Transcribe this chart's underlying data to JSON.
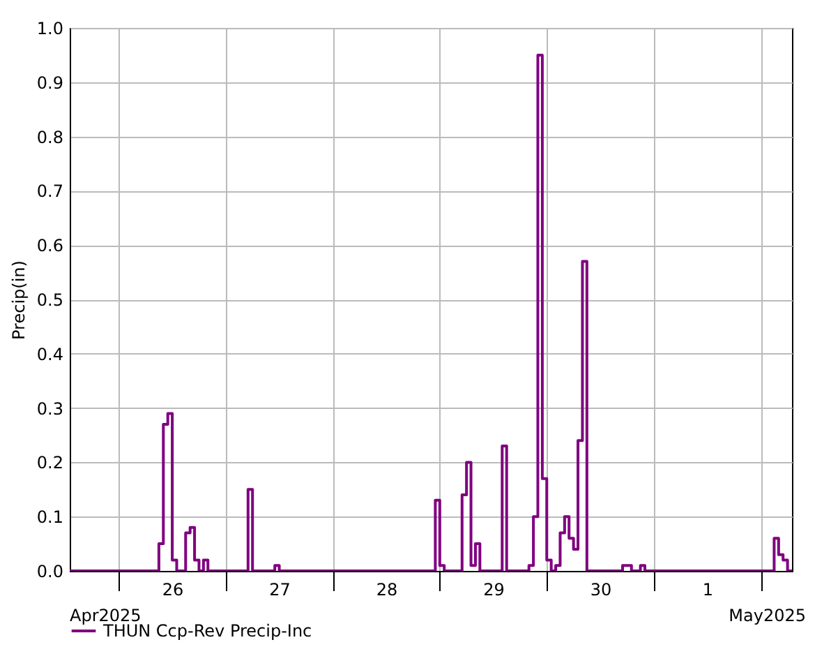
{
  "chart_data": {
    "type": "step",
    "ylabel": "Precip(in)",
    "xlim": [
      "2025-04-25T13:00",
      "2025-05-02T07:00"
    ],
    "ylim": [
      0,
      1
    ],
    "yticks": [
      {
        "value": 0,
        "label": "0.0"
      },
      {
        "value": 0.1,
        "label": "0.1"
      },
      {
        "value": 0.2,
        "label": "0.2"
      },
      {
        "value": 0.3,
        "label": "0.3"
      },
      {
        "value": 0.4,
        "label": "0.4"
      },
      {
        "value": 0.5,
        "label": "0.5"
      },
      {
        "value": 0.6,
        "label": "0.6"
      },
      {
        "value": 0.7,
        "label": "0.7"
      },
      {
        "value": 0.8,
        "label": "0.8"
      },
      {
        "value": 0.9,
        "label": "0.9"
      },
      {
        "value": 1,
        "label": "1.0"
      }
    ],
    "xticks": [
      {
        "value": "2025-04-26T00:00",
        "label": null
      },
      {
        "value": "2025-04-26T12:00",
        "label": "26"
      },
      {
        "value": "2025-04-27T00:00",
        "label": null
      },
      {
        "value": "2025-04-27T12:00",
        "label": "27"
      },
      {
        "value": "2025-04-28T00:00",
        "label": null
      },
      {
        "value": "2025-04-28T12:00",
        "label": "28"
      },
      {
        "value": "2025-04-29T00:00",
        "label": null
      },
      {
        "value": "2025-04-29T12:00",
        "label": "29"
      },
      {
        "value": "2025-04-30T00:00",
        "label": null
      },
      {
        "value": "2025-04-30T12:00",
        "label": "30"
      },
      {
        "value": "2025-05-01T00:00",
        "label": null
      },
      {
        "value": "2025-05-01T12:00",
        "label": "1"
      },
      {
        "value": "2025-05-02T00:00",
        "label": null
      }
    ],
    "grid": true,
    "legend": "bottom",
    "marker": "none",
    "line_style": "solid",
    "annotations": [
      "Apr2025",
      "May2025"
    ],
    "series": [
      {
        "name": "THUN Ccp-Rev Precip-Inc",
        "color": "#800080",
        "x": [
          "2025-04-25T13:00",
          "2025-04-26T09:00",
          "2025-04-26T10:00",
          "2025-04-26T11:00",
          "2025-04-26T12:00",
          "2025-04-26T13:00",
          "2025-04-26T15:00",
          "2025-04-26T16:00",
          "2025-04-26T17:00",
          "2025-04-26T18:00",
          "2025-04-26T19:00",
          "2025-04-26T20:00",
          "2025-04-27T05:00",
          "2025-04-27T06:00",
          "2025-04-27T11:00",
          "2025-04-27T12:00",
          "2025-04-28T23:00",
          "2025-04-29T00:00",
          "2025-04-29T01:00",
          "2025-04-29T05:00",
          "2025-04-29T06:00",
          "2025-04-29T07:00",
          "2025-04-29T08:00",
          "2025-04-29T09:00",
          "2025-04-29T14:00",
          "2025-04-29T15:00",
          "2025-04-29T20:00",
          "2025-04-29T21:00",
          "2025-04-29T22:00",
          "2025-04-29T23:00",
          "2025-04-30T00:00",
          "2025-04-30T01:00",
          "2025-04-30T02:00",
          "2025-04-30T03:00",
          "2025-04-30T04:00",
          "2025-04-30T05:00",
          "2025-04-30T06:00",
          "2025-04-30T07:00",
          "2025-04-30T08:00",
          "2025-04-30T09:00",
          "2025-04-30T17:00",
          "2025-04-30T19:00",
          "2025-04-30T21:00",
          "2025-04-30T22:00",
          "2025-05-02T03:00",
          "2025-05-02T04:00",
          "2025-05-02T05:00",
          "2025-05-02T06:00",
          "2025-05-02T07:00"
        ],
        "values": [
          0,
          0.05,
          0.27,
          0.29,
          0.02,
          0,
          0.07,
          0.08,
          0.02,
          0,
          0.02,
          0,
          0.15,
          0,
          0.01,
          0,
          0.13,
          0.01,
          0,
          0.14,
          0.2,
          0.01,
          0.05,
          0,
          0.23,
          0,
          0.01,
          0.1,
          0.95,
          0.17,
          0.02,
          0,
          0.01,
          0.07,
          0.1,
          0.06,
          0.04,
          0.24,
          0.57,
          0,
          0.01,
          0,
          0.01,
          0,
          0.06,
          0.03,
          0.02,
          0,
          0
        ]
      }
    ]
  }
}
